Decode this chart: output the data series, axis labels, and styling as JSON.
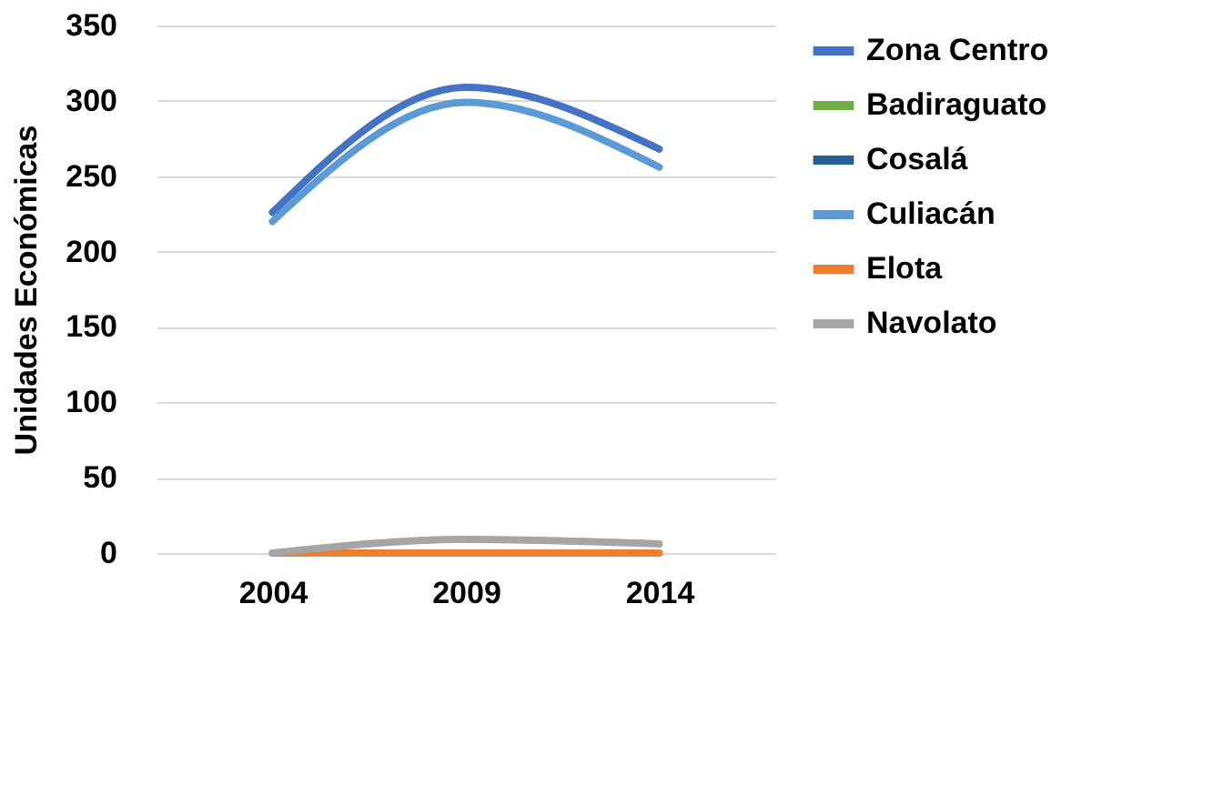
{
  "chart_data": {
    "type": "line",
    "ylabel": "Unidades Económicas",
    "categories": [
      "2004",
      "2009",
      "2014"
    ],
    "series": [
      {
        "name": "Zona Centro",
        "color": "#4472c4",
        "values": [
          226,
          309,
          268
        ]
      },
      {
        "name": "Badiraguato",
        "color": "#70ad47",
        "values": [
          null,
          null,
          null
        ]
      },
      {
        "name": "Cosalá",
        "color": "#255e91",
        "values": [
          null,
          null,
          null
        ]
      },
      {
        "name": "Culiacán",
        "color": "#5b9bd5",
        "values": [
          220,
          299,
          256
        ]
      },
      {
        "name": "Elota",
        "color": "#ed7d31",
        "values": [
          0,
          0,
          0
        ]
      },
      {
        "name": "Navolato",
        "color": "#a5a5a5",
        "values": [
          0,
          9,
          6
        ]
      }
    ],
    "ylim": [
      0,
      350
    ],
    "yticks": [
      0,
      50,
      100,
      150,
      200,
      250,
      300,
      350
    ],
    "grid": "y",
    "legend": "right",
    "marker": "none",
    "line_style": "solid"
  }
}
